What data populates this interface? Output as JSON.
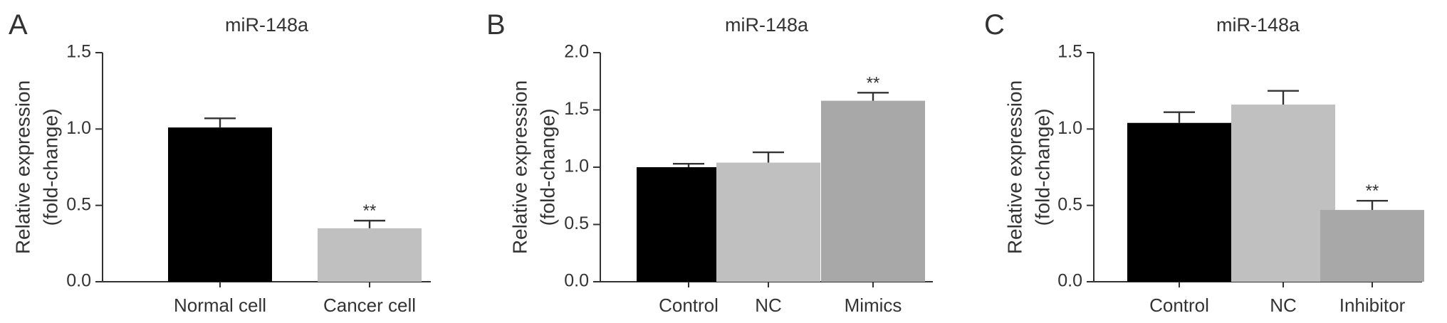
{
  "chart_data": [
    {
      "panel": "A",
      "type": "bar",
      "title": "miR-148a",
      "ylabel_lines": [
        "Relative expression",
        "(fold-change)"
      ],
      "ylim": [
        0,
        1.5
      ],
      "yticks": [
        "0.0",
        "0.5",
        "1.0",
        "1.5"
      ],
      "categories": [
        "Normal cell",
        "Cancer cell"
      ],
      "values": [
        1.01,
        0.35
      ],
      "errors": [
        0.06,
        0.05
      ],
      "colors": [
        "#000000",
        "#c0c0c0"
      ],
      "annotations": [
        "",
        "**"
      ],
      "grid": false
    },
    {
      "panel": "B",
      "type": "bar",
      "title": "miR-148a",
      "ylabel_lines": [
        "Relative expression",
        "(fold-change)"
      ],
      "ylim": [
        0,
        2.0
      ],
      "yticks": [
        "0.0",
        "0.5",
        "1.0",
        "1.5",
        "2.0"
      ],
      "categories": [
        "Control",
        "NC",
        "Mimics"
      ],
      "values": [
        1.0,
        1.04,
        1.58
      ],
      "errors": [
        0.03,
        0.09,
        0.07
      ],
      "colors": [
        "#000000",
        "#c0c0c0",
        "#a8a8a8"
      ],
      "annotations": [
        "",
        "",
        "**"
      ],
      "grid": false
    },
    {
      "panel": "C",
      "type": "bar",
      "title": "miR-148a",
      "ylabel_lines": [
        "Relative expression",
        "(fold-change)"
      ],
      "ylim": [
        0,
        1.5
      ],
      "yticks": [
        "0.0",
        "0.5",
        "1.0",
        "1.5"
      ],
      "categories": [
        "Control",
        "NC",
        "Inhibitor"
      ],
      "values": [
        1.04,
        1.16,
        0.47
      ],
      "errors": [
        0.07,
        0.09,
        0.06
      ],
      "colors": [
        "#000000",
        "#c0c0c0",
        "#a8a8a8"
      ],
      "annotations": [
        "",
        "",
        "**"
      ],
      "grid": false
    }
  ]
}
